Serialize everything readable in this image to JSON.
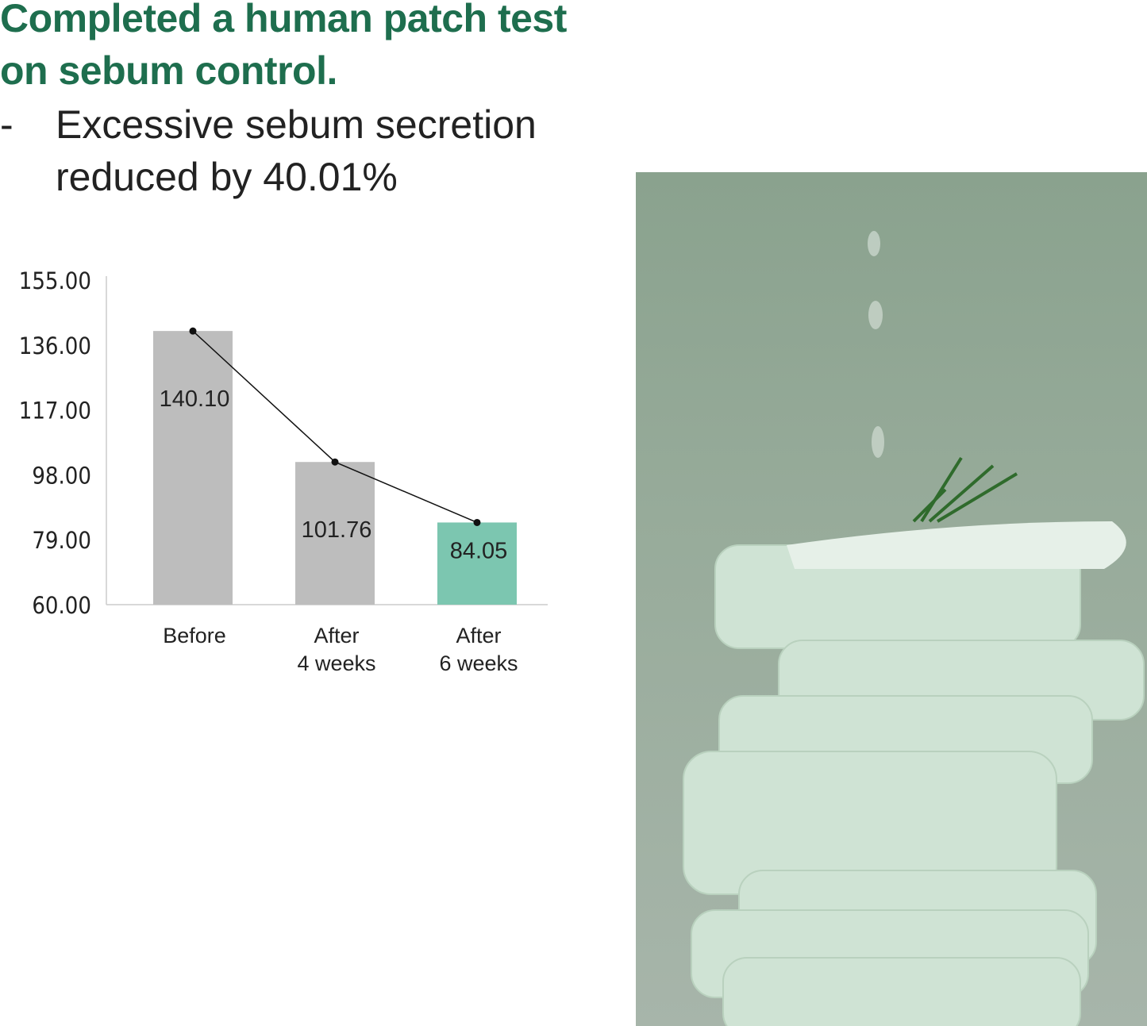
{
  "headline": {
    "line1": "Completed a human patch test",
    "line2": "on sebum control."
  },
  "bullet": {
    "dash": "-",
    "line1": "Excessive sebum secretion",
    "line2": "reduced by 40.01%"
  },
  "chart_data": {
    "type": "bar",
    "categories": [
      [
        "Before"
      ],
      [
        "After",
        "4 weeks"
      ],
      [
        "After",
        "6 weeks"
      ]
    ],
    "values": [
      140.1,
      101.76,
      84.05
    ],
    "data_labels": [
      "140.10",
      "101.76",
      "84.05"
    ],
    "overlay_line": true,
    "ylim": [
      60,
      155
    ],
    "yticks": [
      "155.00",
      "136.00",
      "117.00",
      "98.00",
      "79.00",
      "60.00"
    ],
    "ytick_values": [
      155,
      136,
      117,
      98,
      79,
      60
    ],
    "grid": false,
    "colors": {
      "bar": "#bdbdbd",
      "highlight": "#7cc6b0",
      "line": "#111111"
    },
    "highlight_index": 2
  },
  "photo": {
    "description_icon": "stacked-cotton-pads-image"
  }
}
